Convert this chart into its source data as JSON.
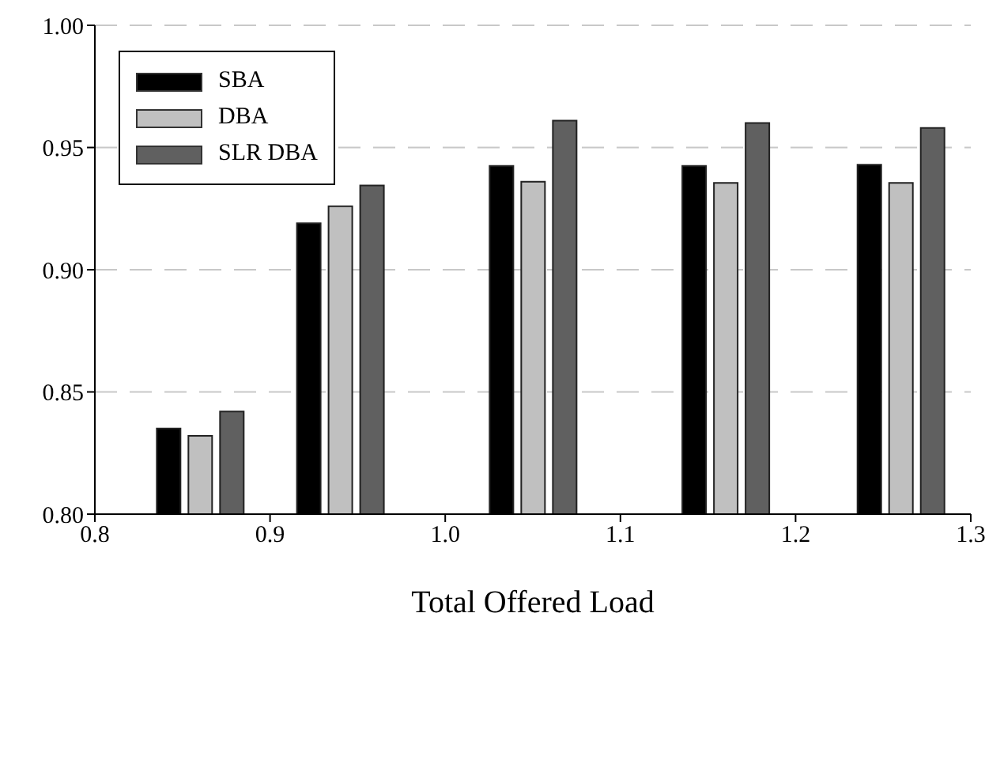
{
  "chart_data": {
    "type": "bar",
    "xlabel": "Total Offered Load",
    "x": [
      0.86,
      0.94,
      1.05,
      1.16,
      1.26
    ],
    "series": [
      {
        "name": "SBA",
        "color": "#000000",
        "values": [
          0.835,
          0.919,
          0.9425,
          0.9425,
          0.943
        ]
      },
      {
        "name": "DBA",
        "color": "#c0c0c0",
        "values": [
          0.832,
          0.926,
          0.936,
          0.9355,
          0.9355
        ]
      },
      {
        "name": "SLR DBA",
        "color": "#606060",
        "values": [
          0.842,
          0.9345,
          0.961,
          0.96,
          0.958
        ]
      }
    ],
    "xlim": [
      0.8,
      1.3
    ],
    "xticks": [
      0.8,
      0.9,
      {
        "value": 1.0,
        "label": "1.0"
      },
      1.1,
      1.2,
      1.3
    ],
    "ylim": [
      0.8,
      1.0
    ],
    "yticks": [
      {
        "value": 0.8,
        "label": "0.80"
      },
      0.85,
      {
        "value": 0.9,
        "label": "0.90"
      },
      0.95,
      {
        "value": 1.0,
        "label": "1.00"
      }
    ],
    "grid": "y",
    "legend": "top left"
  }
}
